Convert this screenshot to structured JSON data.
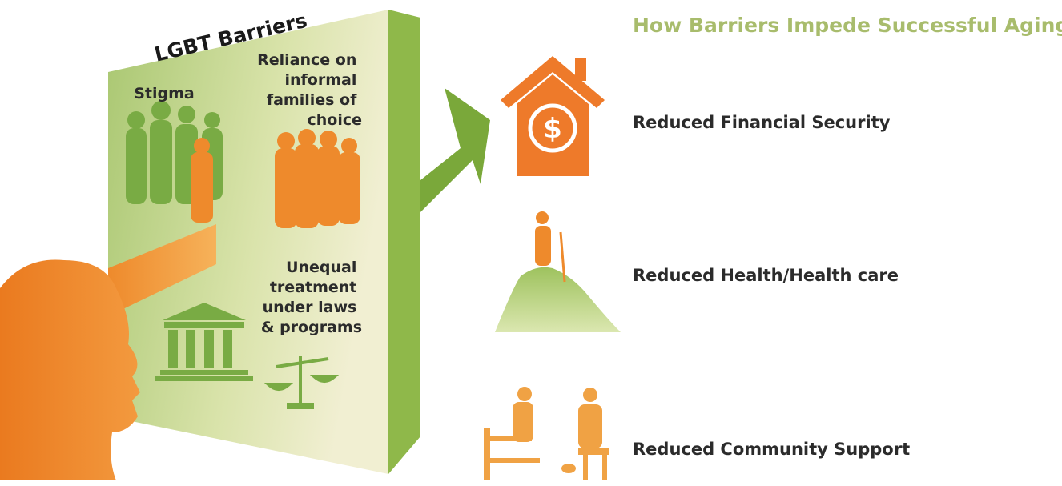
{
  "wall": {
    "title": "LGBT Barriers",
    "barriers": [
      {
        "lines": [
          "Stigma"
        ]
      },
      {
        "lines": [
          "Reliance on",
          "informal",
          "families of",
          "choice"
        ]
      },
      {
        "lines": [
          "Unequal",
          "treatment",
          "under laws",
          "& programs"
        ]
      }
    ]
  },
  "impacts": {
    "title": "How Barriers Impede Successful Aging",
    "items": [
      "Reduced Financial Security",
      "Reduced Health/Health care",
      "Reduced Community Support"
    ]
  }
}
